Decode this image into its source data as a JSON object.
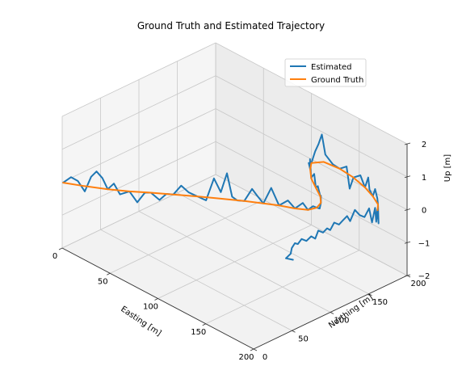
{
  "chart_data": {
    "type": "line",
    "title": "Ground Truth and Estimated Trajectory",
    "axes": {
      "easting": {
        "label": "Easting [m]",
        "range": [
          0,
          200
        ],
        "ticks": [
          "0",
          "50",
          "100",
          "150",
          "200"
        ]
      },
      "northing": {
        "label": "Northing [m]",
        "range": [
          0,
          200
        ],
        "ticks": [
          "0",
          "50",
          "100",
          "150",
          "200"
        ]
      },
      "up": {
        "label": "Up [m]",
        "range": [
          -2,
          2
        ],
        "ticks": [
          "−2",
          "−1",
          "0",
          "1",
          "2"
        ]
      }
    },
    "grid": true,
    "legend": {
      "placement": "upper-right",
      "entries": [
        "Estimated",
        "Ground Truth"
      ]
    },
    "colors": {
      "estimated": "#1f77b4",
      "ground_truth": "#ff7f0e"
    },
    "series": [
      {
        "name": "Ground Truth",
        "points": [
          [
            1,
            0,
            0
          ],
          [
            15,
            10,
            0
          ],
          [
            30,
            22,
            0
          ],
          [
            43,
            34,
            0
          ],
          [
            55,
            47,
            0
          ],
          [
            68,
            60,
            0
          ],
          [
            82,
            74,
            0
          ],
          [
            96,
            87,
            0
          ],
          [
            110,
            100,
            0
          ],
          [
            122,
            110,
            0
          ],
          [
            132,
            118,
            0
          ],
          [
            143,
            125,
            0
          ],
          [
            151,
            132,
            0
          ],
          [
            153,
            141,
            0
          ],
          [
            150,
            150,
            0
          ],
          [
            143,
            158,
            0
          ],
          [
            132,
            166,
            0
          ],
          [
            120,
            175,
            0
          ],
          [
            110,
            186,
            0
          ],
          [
            104,
            195,
            0
          ],
          [
            109,
            205,
            0
          ],
          [
            124,
            207,
            0
          ],
          [
            140,
            205,
            0
          ],
          [
            156,
            200,
            0
          ],
          [
            169,
            194,
            0
          ],
          [
            180,
            187,
            0
          ],
          [
            186,
            179,
            0
          ]
        ]
      },
      {
        "name": "Estimated",
        "points": [
          [
            1,
            0,
            0
          ],
          [
            6,
            4,
            0.2
          ],
          [
            10,
            8,
            0.1
          ],
          [
            14,
            12,
            -0.2
          ],
          [
            19,
            14,
            0.3
          ],
          [
            23,
            16,
            0.5
          ],
          [
            26,
            20,
            0.3
          ],
          [
            30,
            22,
            0
          ],
          [
            34,
            25,
            0.2
          ],
          [
            38,
            28,
            -0.1
          ],
          [
            43,
            34,
            0
          ],
          [
            48,
            38,
            -0.3
          ],
          [
            52,
            43,
            0
          ],
          [
            55,
            47,
            0
          ],
          [
            60,
            52,
            -0.2
          ],
          [
            64,
            56,
            0
          ],
          [
            68,
            60,
            0
          ],
          [
            73,
            64,
            0.3
          ],
          [
            77,
            69,
            0.1
          ],
          [
            82,
            74,
            0
          ],
          [
            87,
            79,
            -0.1
          ],
          [
            92,
            83,
            0.6
          ],
          [
            96,
            87,
            0.2
          ],
          [
            100,
            90,
            0.8
          ],
          [
            103,
            93,
            0.1
          ],
          [
            106,
            96,
            0
          ],
          [
            110,
            100,
            0
          ],
          [
            115,
            104,
            0.4
          ],
          [
            118,
            107,
            0.2
          ],
          [
            122,
            110,
            0
          ],
          [
            127,
            114,
            0.5
          ],
          [
            132,
            118,
            0
          ],
          [
            138,
            122,
            0.2
          ],
          [
            143,
            125,
            0
          ],
          [
            148,
            129,
            0.2
          ],
          [
            151,
            132,
            0
          ],
          [
            153,
            136,
            0.1
          ],
          [
            153,
            141,
            0
          ],
          [
            152,
            146,
            -0.1
          ],
          [
            150,
            150,
            0
          ],
          [
            146,
            155,
            0.1
          ],
          [
            143,
            158,
            0
          ],
          [
            138,
            161,
            0.2
          ],
          [
            132,
            166,
            0
          ],
          [
            127,
            170,
            0.3
          ],
          [
            122,
            173,
            0.1
          ],
          [
            120,
            175,
            0
          ],
          [
            116,
            179,
            0.2
          ],
          [
            113,
            182,
            0.4
          ],
          [
            110,
            186,
            0
          ],
          [
            106,
            189,
            0.1
          ],
          [
            104,
            195,
            0
          ],
          [
            104,
            200,
            0.3
          ],
          [
            105,
            203,
            0.5
          ],
          [
            107,
            205,
            0.8
          ],
          [
            109,
            207,
            0.2
          ],
          [
            116,
            208,
            0
          ],
          [
            124,
            207,
            0
          ],
          [
            132,
            206,
            0.2
          ],
          [
            136,
            205,
            -0.4
          ],
          [
            140,
            205,
            0
          ],
          [
            148,
            204,
            0.2
          ],
          [
            156,
            200,
            0
          ],
          [
            161,
            198,
            0.4
          ],
          [
            164,
            196,
            0.1
          ],
          [
            169,
            194,
            0
          ],
          [
            173,
            192,
            0.3
          ],
          [
            177,
            190,
            0.1
          ],
          [
            180,
            187,
            0
          ],
          [
            183,
            184,
            -0.5
          ],
          [
            185,
            180,
            0
          ],
          [
            187,
            176,
            -0.3
          ],
          [
            189,
            172,
            0.2
          ],
          [
            189,
            168,
            -0.2
          ],
          [
            190,
            163,
            0.3
          ],
          [
            190,
            157,
            0.1
          ],
          [
            189,
            152,
            0.2
          ],
          [
            188,
            147,
            0.4
          ],
          [
            187,
            142,
            0.1
          ],
          [
            187,
            138,
            0.3
          ],
          [
            186,
            134,
            0.2
          ],
          [
            185,
            130,
            0.1
          ],
          [
            184,
            125,
            0.2
          ],
          [
            183,
            121,
            0
          ],
          [
            183,
            117,
            0.1
          ],
          [
            182,
            113,
            0
          ],
          [
            181,
            108,
            0.1
          ],
          [
            181,
            104,
            -0.1
          ],
          [
            180,
            100,
            0
          ],
          [
            179,
            95,
            -0.1
          ],
          [
            178,
            90,
            0
          ],
          [
            178,
            85,
            -0.1
          ],
          [
            179,
            80,
            0
          ],
          [
            179,
            76,
            -0.1
          ],
          [
            181,
            72,
            -0.2
          ],
          [
            180,
            67,
            -0.3
          ],
          [
            185,
            70,
            -0.3
          ]
        ]
      }
    ]
  }
}
